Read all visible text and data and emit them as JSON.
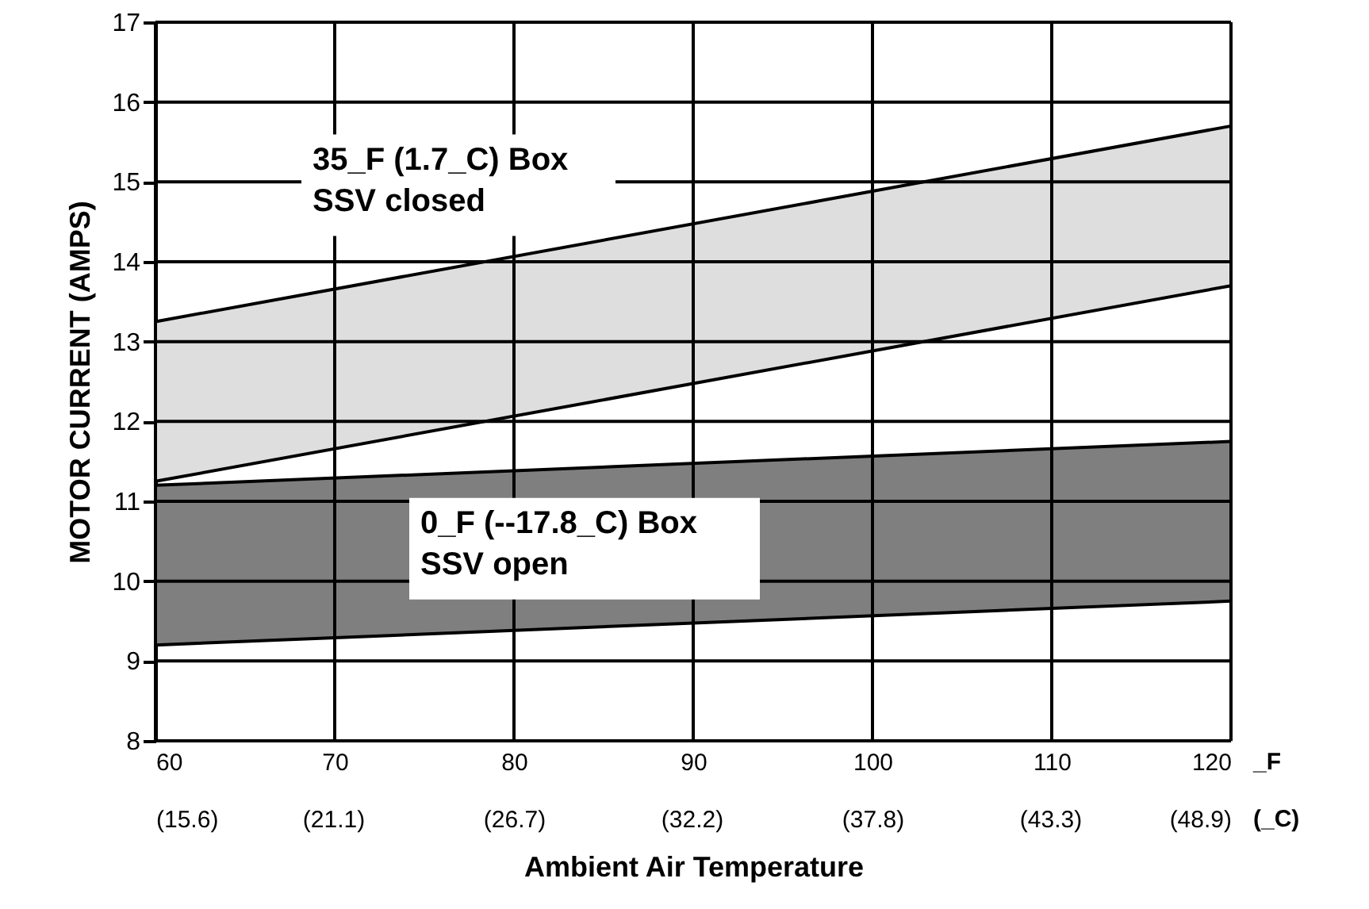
{
  "chart_data": {
    "type": "area",
    "xlabel": "Ambient Air Temperature",
    "ylabel": "MOTOR CURRENT (AMPS)",
    "xlim": [
      60,
      120
    ],
    "ylim": [
      8,
      17
    ],
    "xticks": [
      60,
      70,
      80,
      90,
      100,
      110,
      120
    ],
    "x2lim": [
      15.6,
      48.9
    ],
    "x2ticks": [
      {
        "value": 15.6,
        "label": "(15.6)"
      },
      {
        "value": 21.1,
        "label": "(21.1)"
      },
      {
        "value": 26.7,
        "label": "(26.7)"
      },
      {
        "value": 32.2,
        "label": "(32.2)"
      },
      {
        "value": 37.8,
        "label": "(37.8)"
      },
      {
        "value": 43.3,
        "label": "(43.3)"
      },
      {
        "value": 48.9,
        "label": "(48.9)"
      }
    ],
    "yticks": [
      8,
      9,
      10,
      11,
      12,
      13,
      14,
      15,
      16,
      17
    ],
    "grid": true,
    "legend": false,
    "annotations": [
      "_F",
      "(_C)"
    ],
    "x": [
      60,
      120
    ],
    "series": [
      {
        "name": "35_F (1.7_C) Box\nSSV closed",
        "color": "#dedede",
        "values": [
          13.25,
          15.7
        ]
      },
      {
        "type": "line",
        "color": "#000000",
        "values": [
          11.25,
          13.7
        ]
      },
      {
        "name": "0_F (--17.8_C) Box\nSSV open",
        "color": "#7f7f7f",
        "values": [
          11.2,
          11.75
        ]
      },
      {
        "type": "line",
        "color": "#000000",
        "values": [
          9.2,
          9.75
        ]
      }
    ]
  }
}
